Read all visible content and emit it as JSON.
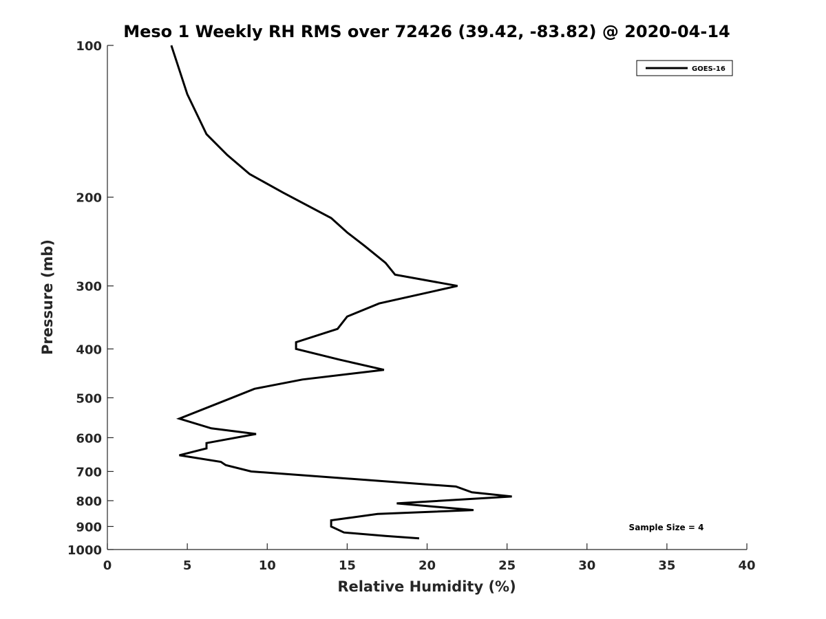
{
  "chart_data": {
    "type": "line",
    "title": "Meso 1 Weekly RH RMS over 72426 (39.42, -83.82) @ 2020-04-14",
    "xlabel": "Relative Humidity (%)",
    "ylabel": "Pressure (mb)",
    "xlim": [
      0,
      40
    ],
    "ylim": [
      100,
      1000
    ],
    "y_scale": "log",
    "y_reversed": true,
    "grid": false,
    "legend_position": "top-right",
    "x_ticks": [
      0,
      5,
      10,
      15,
      20,
      25,
      30,
      35,
      40
    ],
    "y_ticks": [
      100,
      200,
      300,
      400,
      500,
      600,
      700,
      800,
      900,
      1000
    ],
    "series": [
      {
        "name": "GOES-16",
        "color": "#000000",
        "points": [
          [
            4.0,
            100
          ],
          [
            5.0,
            125
          ],
          [
            6.2,
            150
          ],
          [
            7.5,
            165
          ],
          [
            8.9,
            180
          ],
          [
            11.0,
            196
          ],
          [
            14.0,
            220
          ],
          [
            15.0,
            235
          ],
          [
            16.1,
            250
          ],
          [
            17.4,
            270
          ],
          [
            18.0,
            285
          ],
          [
            21.9,
            300
          ],
          [
            17.0,
            325
          ],
          [
            15.0,
            345
          ],
          [
            14.4,
            365
          ],
          [
            11.8,
            388
          ],
          [
            11.8,
            400
          ],
          [
            14.5,
            420
          ],
          [
            17.3,
            440
          ],
          [
            12.2,
            460
          ],
          [
            9.2,
            480
          ],
          [
            7.8,
            500
          ],
          [
            4.5,
            550
          ],
          [
            6.5,
            575
          ],
          [
            9.3,
            590
          ],
          [
            6.2,
            615
          ],
          [
            6.2,
            630
          ],
          [
            4.5,
            650
          ],
          [
            7.1,
            670
          ],
          [
            7.4,
            680
          ],
          [
            9.0,
            700
          ],
          [
            21.8,
            750
          ],
          [
            22.8,
            770
          ],
          [
            25.3,
            785
          ],
          [
            18.1,
            810
          ],
          [
            22.9,
            835
          ],
          [
            16.9,
            850
          ],
          [
            14.0,
            875
          ],
          [
            14.0,
            900
          ],
          [
            14.8,
            925
          ],
          [
            17.4,
            940
          ],
          [
            19.5,
            950
          ]
        ]
      }
    ],
    "annotations": [
      "Sample Size = 4"
    ]
  }
}
